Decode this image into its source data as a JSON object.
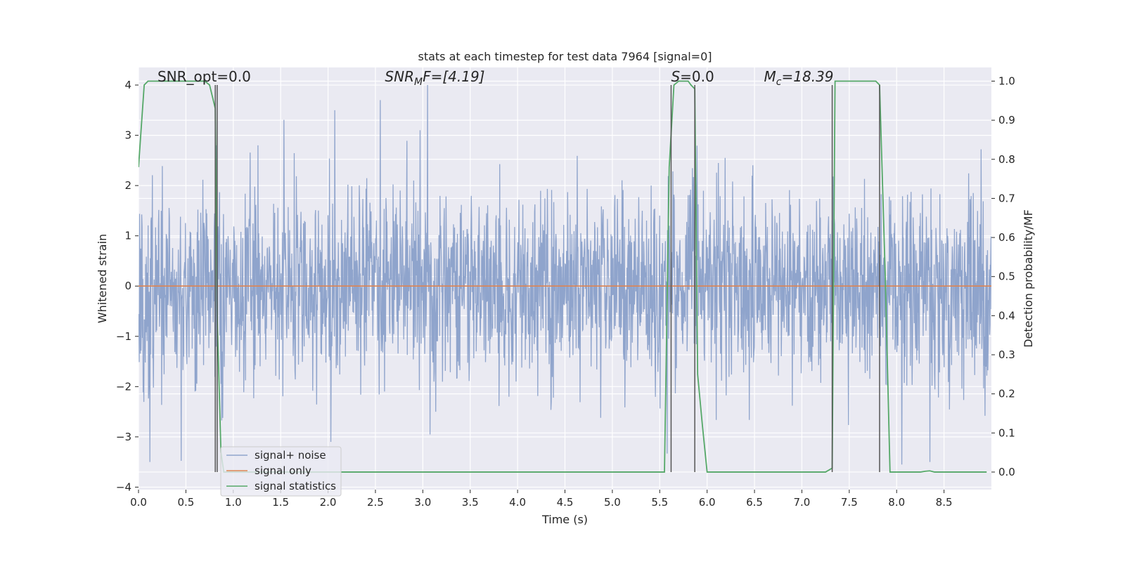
{
  "chart_data": {
    "type": "line",
    "title": "stats at each timestep for test data 7964 [signal=0]",
    "xlabel": "Time (s)",
    "ylabel": "Whitened strain",
    "ylabel_right": "Detection probability/MF",
    "xlim": [
      0,
      9.0
    ],
    "ylim": [
      -4.05,
      4.35
    ],
    "ylim_right": [
      -0.045,
      1.035
    ],
    "xticks": [
      "0.0",
      "0.5",
      "1.0",
      "1.5",
      "2.0",
      "2.5",
      "3.0",
      "3.5",
      "4.0",
      "4.5",
      "5.0",
      "5.5",
      "6.0",
      "6.5",
      "7.0",
      "7.5",
      "8.0",
      "8.5"
    ],
    "xtick_values": [
      0,
      0.5,
      1.0,
      1.5,
      2.0,
      2.5,
      3.0,
      3.5,
      4.0,
      4.5,
      5.0,
      5.5,
      6.0,
      6.5,
      7.0,
      7.5,
      8.0,
      8.5
    ],
    "yticks": [
      "4",
      "3",
      "2",
      "1",
      "0",
      "−1",
      "−2",
      "−3",
      "−4"
    ],
    "ytick_values": [
      4,
      3,
      2,
      1,
      0,
      -1,
      -2,
      -3,
      -4
    ],
    "yticks_right": [
      "1.0",
      "0.9",
      "0.8",
      "0.7",
      "0.6",
      "0.5",
      "0.4",
      "0.3",
      "0.2",
      "0.1",
      "0.0"
    ],
    "ytick_right_values": [
      1.0,
      0.9,
      0.8,
      0.7,
      0.6,
      0.5,
      0.4,
      0.3,
      0.2,
      0.1,
      0.0
    ],
    "grid": true,
    "legend_placement": "lower-left",
    "annotations": [
      {
        "x": 0.2,
        "y": 4.1,
        "text": "SNR_opt=0.0",
        "italic": false
      },
      {
        "x": 2.6,
        "y": 4.1,
        "text": "SNR",
        "sub": "M",
        "suffix": "F=[4.19]",
        "italic": true
      },
      {
        "x": 5.62,
        "y": 4.1,
        "text": "S",
        "suffix": "=0.0",
        "italic": true
      },
      {
        "x": 6.6,
        "y": 4.1,
        "text": "M",
        "sub": "c",
        "suffix": "=18.39",
        "italic": true
      }
    ],
    "vlines": [
      0.81,
      0.83,
      5.62,
      5.87,
      7.32,
      7.82
    ],
    "series": [
      {
        "name": "signal+ noise",
        "color": "#8fa4cc",
        "kind": "noise",
        "std": 0.95,
        "n_points": 2400,
        "ymin": -3.55,
        "ymax": 4.0,
        "spikes": [
          [
            0.82,
            2.8
          ],
          [
            1.26,
            2.8
          ],
          [
            2.07,
            3.5
          ],
          [
            2.55,
            3.7
          ],
          [
            3.05,
            4.0
          ],
          [
            2.97,
            3.1
          ],
          [
            5.87,
            2.0
          ],
          [
            8.35,
            -3.5
          ],
          [
            0.12,
            -3.5
          ],
          [
            2.03,
            -3.1
          ]
        ]
      },
      {
        "name": "signal only",
        "color": "#dd8452",
        "kind": "constant",
        "value": 0
      },
      {
        "name": "signal statistics",
        "color": "#55a868",
        "kind": "right",
        "x": [
          0.0,
          0.06,
          0.1,
          0.15,
          0.25,
          0.4,
          0.6,
          0.7,
          0.75,
          0.81,
          0.83,
          0.87,
          0.9,
          1.0,
          1.5,
          2.0,
          3.0,
          4.0,
          5.0,
          5.55,
          5.6,
          5.65,
          5.7,
          5.75,
          5.8,
          5.83,
          5.87,
          5.9,
          5.95,
          6.0,
          6.5,
          7.0,
          7.25,
          7.32,
          7.35,
          7.4,
          7.6,
          7.78,
          7.82,
          7.88,
          7.93,
          8.0,
          8.25,
          8.3,
          8.35,
          8.4,
          8.5,
          8.95
        ],
        "y": [
          0.78,
          0.99,
          1.0,
          1.0,
          1.0,
          1.0,
          1.0,
          1.0,
          0.99,
          0.93,
          0.4,
          0.05,
          0.0,
          0.0,
          0.0,
          0.0,
          0.0,
          0.0,
          0.0,
          0.0,
          0.78,
          0.99,
          1.0,
          1.0,
          1.0,
          0.99,
          0.98,
          0.25,
          0.12,
          0.0,
          0.0,
          0.0,
          0.0,
          0.01,
          1.0,
          1.0,
          1.0,
          1.0,
          0.99,
          0.5,
          0.0,
          0.0,
          0.0,
          0.002,
          0.003,
          0.0,
          0.0,
          0.0
        ]
      }
    ]
  }
}
